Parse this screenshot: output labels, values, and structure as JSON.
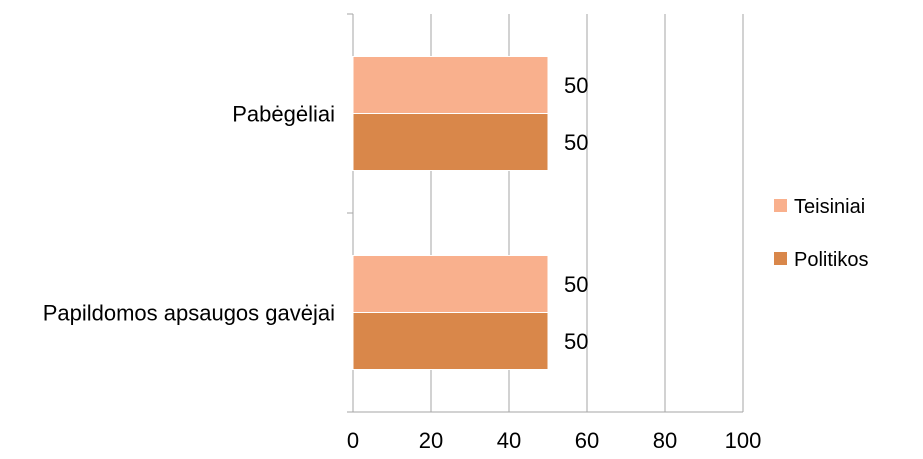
{
  "chart_data": {
    "type": "bar",
    "orientation": "horizontal",
    "categories": [
      "Pabėgėliai",
      "Papildomos apsaugos gavėjai"
    ],
    "series": [
      {
        "name": "Teisiniai",
        "values": [
          50,
          50
        ],
        "color": "#F9B08D"
      },
      {
        "name": "Politikos",
        "values": [
          50,
          50
        ],
        "color": "#D9874A"
      }
    ],
    "xlim": [
      0,
      100
    ],
    "xticks": [
      "0",
      "20",
      "40",
      "60",
      "80",
      "100"
    ],
    "data_labels": true,
    "grid": true,
    "legend_position": "right",
    "title": "",
    "xlabel": "",
    "ylabel": ""
  }
}
